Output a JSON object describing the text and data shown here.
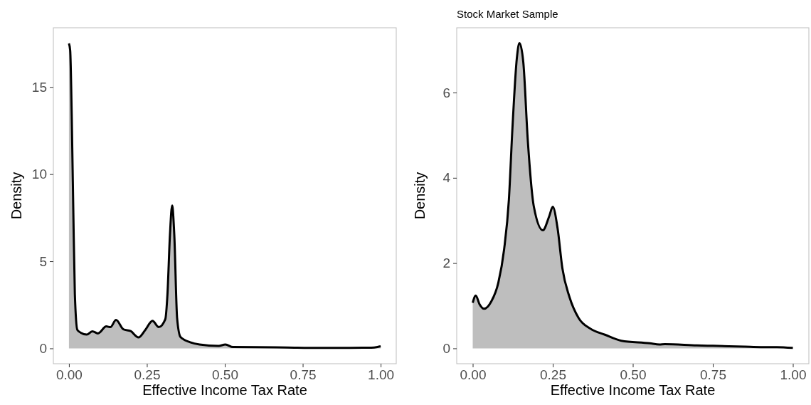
{
  "chart_data": [
    {
      "type": "area",
      "xlabel": "Effective Income Tax Rate",
      "ylabel": "Density",
      "color": "#bebebe",
      "x": [
        0,
        0.004,
        0.009,
        0.014,
        0.019,
        0.027,
        0.038,
        0.057,
        0.075,
        0.093,
        0.12,
        0.133,
        0.151,
        0.175,
        0.198,
        0.223,
        0.245,
        0.268,
        0.288,
        0.309,
        0.316,
        0.324,
        0.331,
        0.338,
        0.347,
        0.358,
        0.389,
        0.419,
        0.48,
        0.502,
        0.526,
        0.6,
        0.7,
        0.8,
        0.9,
        0.97,
        0.99,
        1.0
      ],
      "values": [
        17.5,
        17.1,
        13.3,
        7.9,
        3.1,
        1.06,
        0.9,
        0.79,
        0.98,
        0.86,
        1.26,
        1.22,
        1.63,
        1.09,
        0.99,
        0.63,
        1.06,
        1.58,
        1.22,
        1.67,
        3.1,
        6.5,
        8.2,
        6.5,
        1.74,
        0.65,
        0.35,
        0.22,
        0.14,
        0.22,
        0.08,
        0.07,
        0.05,
        0.03,
        0.03,
        0.04,
        0.08,
        0.12
      ],
      "xlim": [
        -0.05,
        1.05
      ],
      "ylim": [
        -0.88,
        18.4
      ],
      "xticks": [
        {
          "value": 0,
          "label": "0.00"
        },
        {
          "value": 0.25,
          "label": "0.25"
        },
        {
          "value": 0.5,
          "label": "0.50"
        },
        {
          "value": 0.75,
          "label": "0.75"
        },
        {
          "value": 1,
          "label": "1.00"
        }
      ],
      "yticks": [
        0,
        5,
        10,
        15
      ]
    },
    {
      "type": "area",
      "title": "Stock Market Sample",
      "xlabel": "Effective Income Tax Rate",
      "ylabel": "Density",
      "color": "#bebebe",
      "x": [
        0,
        0.0096,
        0.021,
        0.036,
        0.058,
        0.08,
        0.098,
        0.113,
        0.124,
        0.138,
        0.146,
        0.158,
        0.172,
        0.191,
        0.219,
        0.239,
        0.25,
        0.265,
        0.28,
        0.302,
        0.331,
        0.368,
        0.413,
        0.464,
        0.553,
        0.583,
        0.6,
        0.7,
        0.75,
        0.8,
        0.85,
        0.9,
        0.95,
        1.0
      ],
      "values": [
        1.07,
        1.24,
        1.04,
        0.93,
        1.1,
        1.54,
        2.32,
        3.49,
        5.16,
        6.82,
        7.16,
        6.71,
        4.88,
        3.32,
        2.77,
        3.1,
        3.32,
        2.82,
        1.88,
        1.21,
        0.71,
        0.46,
        0.32,
        0.18,
        0.12,
        0.09,
        0.1,
        0.07,
        0.06,
        0.05,
        0.04,
        0.03,
        0.03,
        0.01
      ],
      "xlim": [
        -0.05,
        1.05
      ],
      "ylim": [
        -0.36,
        7.52
      ],
      "xticks": [
        {
          "value": 0,
          "label": "0.00"
        },
        {
          "value": 0.25,
          "label": "0.25"
        },
        {
          "value": 0.5,
          "label": "0.50"
        },
        {
          "value": 0.75,
          "label": "0.75"
        },
        {
          "value": 1,
          "label": "1.00"
        }
      ],
      "yticks": [
        0,
        2,
        4,
        6
      ]
    }
  ]
}
